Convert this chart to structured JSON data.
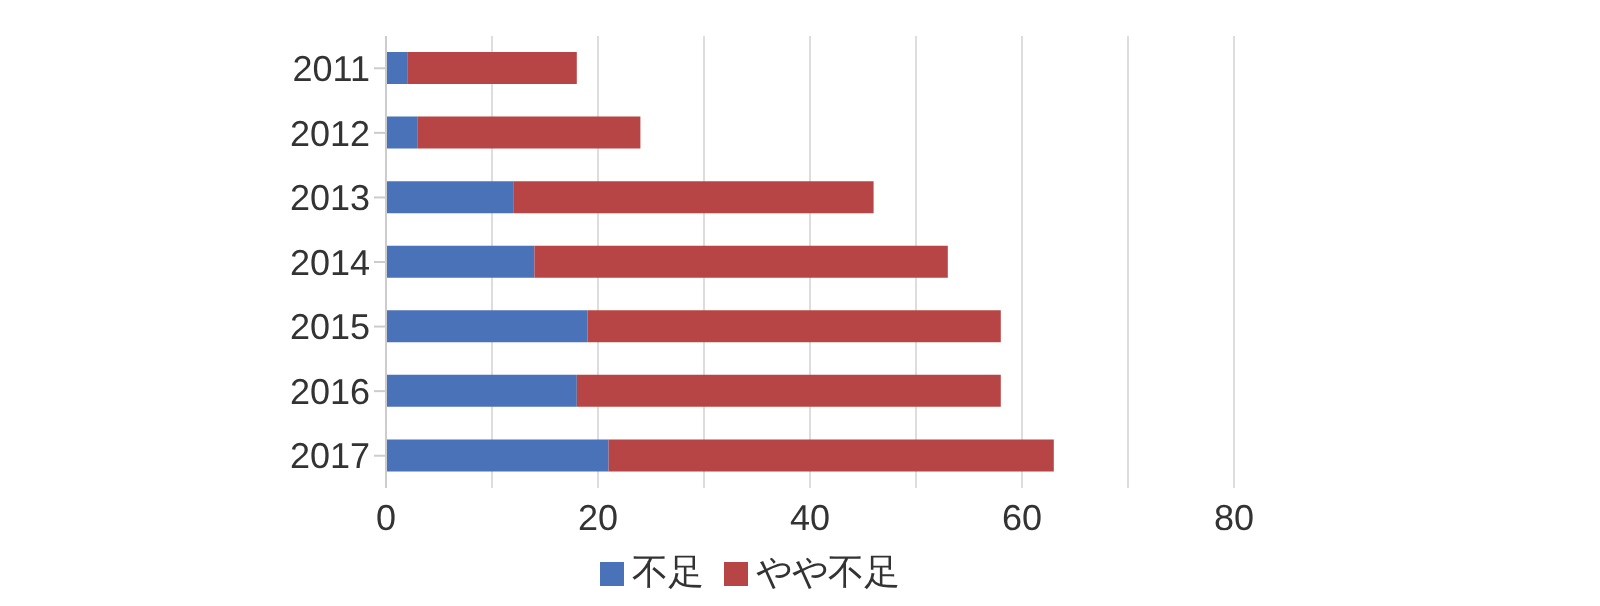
{
  "chart_data": {
    "type": "bar",
    "orientation": "horizontal",
    "stacked": true,
    "categories": [
      "2011",
      "2012",
      "2013",
      "2014",
      "2015",
      "2016",
      "2017"
    ],
    "series": [
      {
        "name": "不足",
        "color": "#4a72b8",
        "values": [
          2,
          3,
          12,
          14,
          19,
          18,
          21
        ]
      },
      {
        "name": "やや不足",
        "color": "#b84545",
        "values": [
          16,
          21,
          34,
          39,
          39,
          40,
          42
        ]
      }
    ],
    "xlim": [
      0,
      80
    ],
    "xticks": [
      0,
      {
        "value": 10,
        "label": null
      },
      20,
      {
        "value": 30,
        "label": null
      },
      40,
      {
        "value": 50,
        "label": null
      },
      60,
      {
        "value": 70,
        "label": null
      },
      80
    ],
    "grid": "x",
    "legend": "bottom"
  }
}
